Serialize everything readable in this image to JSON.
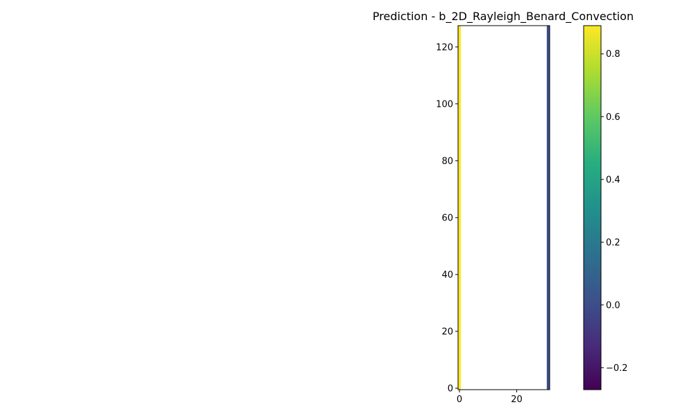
{
  "chart_data": {
    "type": "heatmap",
    "title": "Prediction - b_2D_Rayleigh_Benard_Convection",
    "xlabel": "",
    "ylabel": "",
    "xlim": [
      -0.5,
      31.5
    ],
    "ylim": [
      -0.5,
      127.5
    ],
    "x_ticks": [
      0,
      20
    ],
    "y_ticks": [
      0,
      20,
      40,
      60,
      80,
      100,
      120
    ],
    "colormap": "viridis",
    "value_range": [
      -0.27,
      0.89
    ],
    "colorbar_ticks": [
      -0.2,
      0.0,
      0.2,
      0.4,
      0.6,
      0.8
    ],
    "columns": [
      {
        "x": 0,
        "value": 0.89
      },
      {
        "x": 31,
        "value": 0.0
      }
    ],
    "interior_value": null,
    "grid": false
  }
}
